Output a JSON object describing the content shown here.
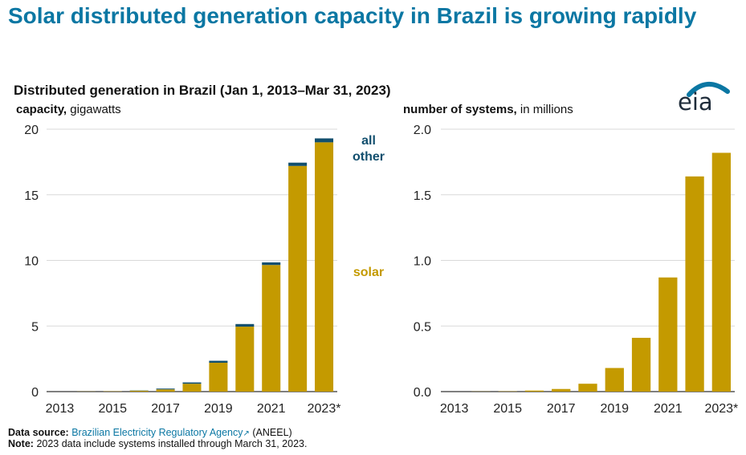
{
  "headline": "Solar distributed generation capacity in Brazil is growing rapidly",
  "subtitle": "Distributed generation in Brazil (Jan 1, 2013–Mar 31, 2023)",
  "logo": {
    "text": "eia",
    "icon": "eia-logo-arc"
  },
  "colors": {
    "solar": "#c49a00",
    "other": "#124f6e",
    "accent": "#0b77a3",
    "grid": "#d9d9d9"
  },
  "legend": {
    "other": "all other",
    "solar": "solar"
  },
  "footer": {
    "source_label": "Data source:",
    "source_link": "Brazilian Electricity Regulatory Agency",
    "source_suffix": "(ANEEL)",
    "note_label": "Note:",
    "note_text": "2023 data include systems installed through March 31, 2023."
  },
  "chart_data": [
    {
      "type": "bar",
      "stacked": true,
      "ylabel_bold": "capacity,",
      "ylabel_rest": "gigawatts",
      "categories": [
        "2013",
        "2014",
        "2015",
        "2016",
        "2017",
        "2018",
        "2019",
        "2020",
        "2021",
        "2022",
        "2023*"
      ],
      "tick_labels": [
        "2013",
        "2015",
        "2017",
        "2019",
        "2021",
        "2023*"
      ],
      "ylim": [
        0,
        20
      ],
      "yticks": [
        "0",
        "5",
        "10",
        "15",
        "20"
      ],
      "series": [
        {
          "name": "solar",
          "values": [
            0.0,
            0.01,
            0.02,
            0.07,
            0.17,
            0.6,
            2.2,
            4.95,
            9.65,
            17.2,
            19.0
          ]
        },
        {
          "name": "all other",
          "values": [
            0.0,
            0.0,
            0.0,
            0.02,
            0.06,
            0.1,
            0.15,
            0.2,
            0.2,
            0.25,
            0.3
          ]
        }
      ]
    },
    {
      "type": "bar",
      "ylabel_bold": "number of systems,",
      "ylabel_rest": "in millions",
      "categories": [
        "2013",
        "2014",
        "2015",
        "2016",
        "2017",
        "2018",
        "2019",
        "2020",
        "2021",
        "2022",
        "2023*"
      ],
      "tick_labels": [
        "2013",
        "2015",
        "2017",
        "2019",
        "2021",
        "2023*"
      ],
      "ylim": [
        0,
        2.0
      ],
      "yticks": [
        "0.0",
        "0.5",
        "1.0",
        "1.5",
        "2.0"
      ],
      "series": [
        {
          "name": "systems",
          "values": [
            0.0,
            0.001,
            0.002,
            0.008,
            0.02,
            0.06,
            0.18,
            0.41,
            0.87,
            1.64,
            1.82
          ]
        }
      ]
    }
  ]
}
